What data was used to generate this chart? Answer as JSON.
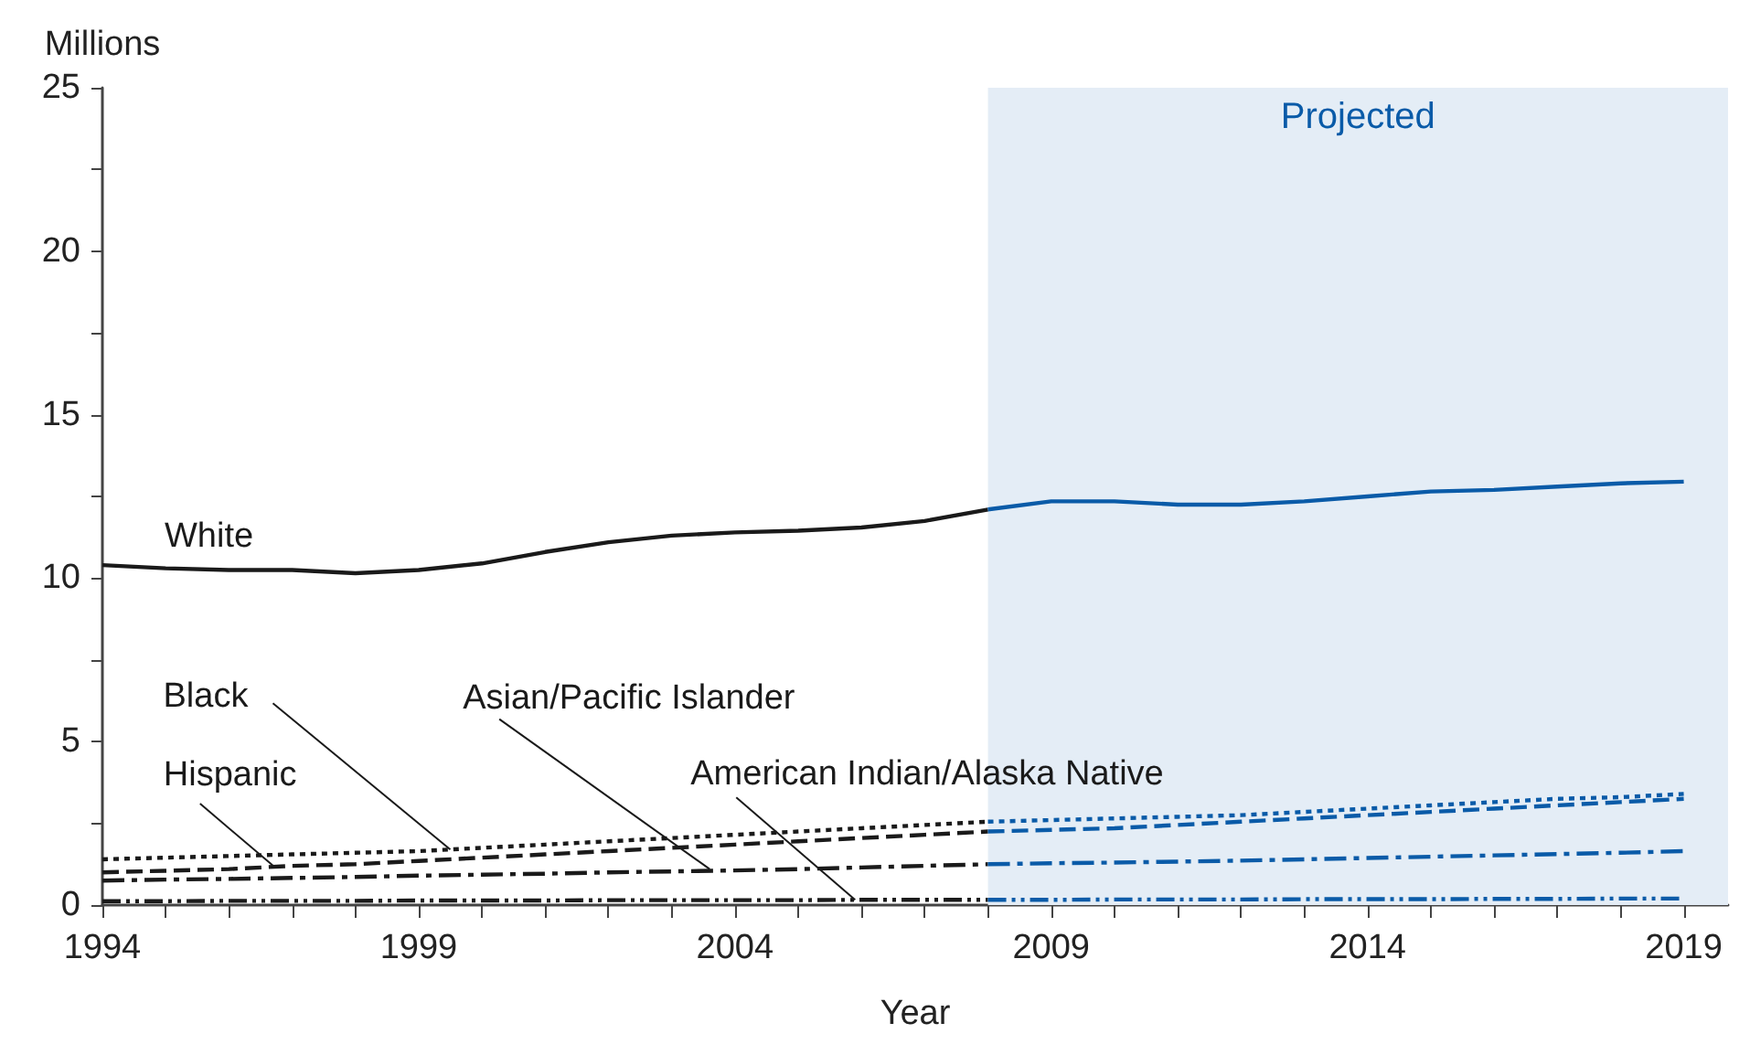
{
  "chart_data": {
    "type": "line",
    "xlabel": "Year",
    "ylabel": "Millions",
    "xlim": [
      1994,
      2019.7
    ],
    "xticks": [
      1994,
      {
        "value": 1995,
        "label": null
      },
      {
        "value": 1996,
        "label": null
      },
      {
        "value": 1997,
        "label": null
      },
      {
        "value": 1998,
        "label": null
      },
      1999,
      {
        "value": 2000,
        "label": null
      },
      {
        "value": 2001,
        "label": null
      },
      {
        "value": 2002,
        "label": null
      },
      {
        "value": 2003,
        "label": null
      },
      2004,
      {
        "value": 2005,
        "label": null
      },
      {
        "value": 2006,
        "label": null
      },
      {
        "value": 2007,
        "label": null
      },
      {
        "value": 2008,
        "label": null
      },
      2009,
      {
        "value": 2010,
        "label": null
      },
      {
        "value": 2011,
        "label": null
      },
      {
        "value": 2012,
        "label": null
      },
      {
        "value": 2013,
        "label": null
      },
      2014,
      {
        "value": 2015,
        "label": null
      },
      {
        "value": 2016,
        "label": null
      },
      {
        "value": 2017,
        "label": null
      },
      {
        "value": 2018,
        "label": null
      },
      2019
    ],
    "ylim": [
      0,
      25
    ],
    "yticks": [
      0,
      {
        "value": 2.5,
        "label": null
      },
      5,
      {
        "value": 7.5,
        "label": null
      },
      10,
      {
        "value": 12.5,
        "label": null
      },
      15,
      {
        "value": 17.5,
        "label": null
      },
      20,
      {
        "value": 22.5,
        "label": null
      },
      25
    ],
    "grid": false,
    "marker": "none",
    "bands": [
      {
        "axis": "x",
        "from": 2008,
        "to": 2019.7,
        "label": "Projected",
        "color": "#e4edf6"
      }
    ],
    "series": [
      {
        "color": "#1a1a1a",
        "line_style": "solid",
        "x": [
          1994,
          1995,
          1996,
          1997,
          1998,
          1999,
          2000,
          2001,
          2002,
          2003,
          2004,
          2005,
          2006,
          2007,
          2008
        ],
        "values": [
          10.4,
          10.3,
          10.25,
          10.25,
          10.15,
          10.25,
          10.45,
          10.8,
          11.1,
          11.3,
          11.4,
          11.45,
          11.55,
          11.75,
          12.1
        ]
      },
      {
        "color": "#0a5ba8",
        "line_style": "solid",
        "x": [
          2008,
          2009,
          2010,
          2011,
          2012,
          2013,
          2014,
          2015,
          2016,
          2017,
          2018,
          2019
        ],
        "values": [
          12.1,
          12.35,
          12.35,
          12.25,
          12.25,
          12.35,
          12.5,
          12.65,
          12.7,
          12.8,
          12.9,
          12.95
        ]
      },
      {
        "color": "#1a1a1a",
        "line_style": "dotted",
        "x": [
          1994,
          1995,
          1996,
          1997,
          1998,
          1999,
          2000,
          2001,
          2002,
          2003,
          2004,
          2005,
          2006,
          2007,
          2008
        ],
        "values": [
          1.4,
          1.45,
          1.5,
          1.55,
          1.6,
          1.65,
          1.75,
          1.85,
          1.95,
          2.05,
          2.15,
          2.25,
          2.35,
          2.45,
          2.55
        ]
      },
      {
        "color": "#0a5ba8",
        "line_style": "dotted",
        "x": [
          2008,
          2009,
          2010,
          2011,
          2012,
          2013,
          2014,
          2015,
          2016,
          2017,
          2018,
          2019
        ],
        "values": [
          2.55,
          2.6,
          2.65,
          2.7,
          2.75,
          2.85,
          2.95,
          3.05,
          3.15,
          3.25,
          3.3,
          3.4
        ]
      },
      {
        "color": "#1a1a1a",
        "line_style": "dashed",
        "x": [
          1994,
          1995,
          1996,
          1997,
          1998,
          1999,
          2000,
          2001,
          2002,
          2003,
          2004,
          2005,
          2006,
          2007,
          2008
        ],
        "values": [
          1.0,
          1.05,
          1.1,
          1.2,
          1.25,
          1.35,
          1.45,
          1.55,
          1.65,
          1.75,
          1.85,
          1.95,
          2.05,
          2.15,
          2.25
        ]
      },
      {
        "color": "#0a5ba8",
        "line_style": "dashed",
        "x": [
          2008,
          2009,
          2010,
          2011,
          2012,
          2013,
          2014,
          2015,
          2016,
          2017,
          2018,
          2019
        ],
        "values": [
          2.25,
          2.3,
          2.35,
          2.45,
          2.55,
          2.65,
          2.75,
          2.85,
          2.95,
          3.05,
          3.15,
          3.25
        ]
      },
      {
        "color": "#1a1a1a",
        "line_style": "dashdot",
        "x": [
          1994,
          1995,
          1996,
          1997,
          1998,
          1999,
          2000,
          2001,
          2002,
          2003,
          2004,
          2005,
          2006,
          2007,
          2008
        ],
        "values": [
          0.75,
          0.78,
          0.8,
          0.83,
          0.86,
          0.9,
          0.93,
          0.96,
          1.0,
          1.03,
          1.06,
          1.1,
          1.15,
          1.2,
          1.25
        ]
      },
      {
        "color": "#0a5ba8",
        "line_style": "dashdot",
        "x": [
          2008,
          2009,
          2010,
          2011,
          2012,
          2013,
          2014,
          2015,
          2016,
          2017,
          2018,
          2019
        ],
        "values": [
          1.25,
          1.28,
          1.3,
          1.33,
          1.36,
          1.4,
          1.44,
          1.48,
          1.52,
          1.56,
          1.6,
          1.65
        ]
      },
      {
        "color": "#1a1a1a",
        "line_style": "dashdotdot",
        "x": [
          1994,
          1995,
          1996,
          1997,
          1998,
          1999,
          2000,
          2001,
          2002,
          2003,
          2004,
          2005,
          2006,
          2007,
          2008
        ],
        "values": [
          0.12,
          0.12,
          0.13,
          0.13,
          0.13,
          0.14,
          0.14,
          0.14,
          0.15,
          0.15,
          0.15,
          0.15,
          0.16,
          0.16,
          0.16
        ]
      },
      {
        "color": "#0a5ba8",
        "line_style": "dashdotdot",
        "x": [
          2008,
          2009,
          2010,
          2011,
          2012,
          2013,
          2014,
          2015,
          2016,
          2017,
          2018,
          2019
        ],
        "values": [
          0.16,
          0.16,
          0.17,
          0.17,
          0.17,
          0.18,
          0.18,
          0.18,
          0.19,
          0.19,
          0.2,
          0.2
        ]
      }
    ],
    "annotations": [
      {
        "text": "White",
        "x": 1994,
        "y": 10.4
      },
      {
        "text": "Black",
        "x": 1999.5,
        "y": 1.7
      },
      {
        "text": "Hispanic",
        "x": 1996.7,
        "y": 1.2
      },
      {
        "text": "Asian/Pacific Islander",
        "x": 2003.6,
        "y": 1.1
      },
      {
        "text": "American Indian/Alaska Native",
        "x": 2005.9,
        "y": 0.16
      }
    ]
  }
}
